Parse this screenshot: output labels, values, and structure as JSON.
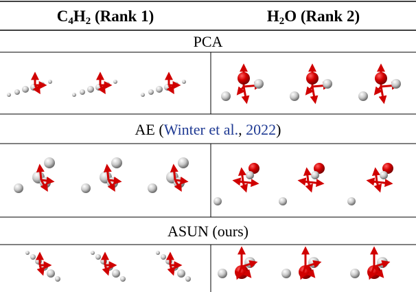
{
  "header": {
    "columns": [
      {
        "parts": [
          "C",
          "4",
          "H",
          "2",
          " (Rank 1)"
        ]
      },
      {
        "parts": [
          "H",
          "2",
          "O",
          " (Rank 2)"
        ]
      }
    ]
  },
  "sections": [
    {
      "label": [
        "PCA"
      ]
    },
    {
      "label": [
        "AE (",
        "Winter et al.",
        ", ",
        "2022",
        ")"
      ]
    },
    {
      "label": [
        "ASUN (ours)"
      ]
    }
  ]
}
